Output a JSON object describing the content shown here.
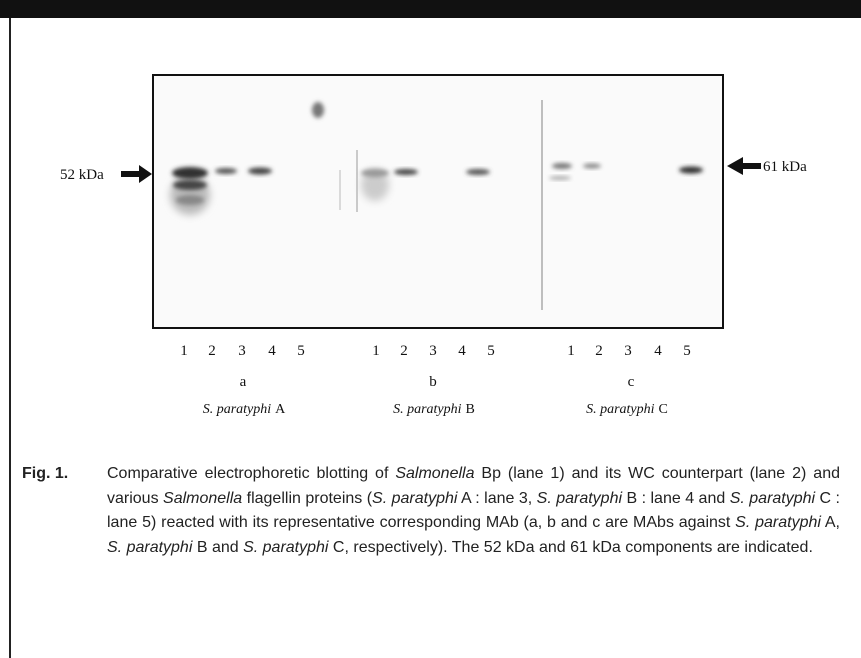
{
  "figure": {
    "markers": [
      {
        "label": "52 kDa"
      },
      {
        "label": "61 kDa"
      }
    ],
    "panels": [
      {
        "lanes": [
          "1",
          "2",
          "3",
          "4",
          "5"
        ],
        "letter": "a",
        "species": "S. paratyphi",
        "serovar": "A"
      },
      {
        "lanes": [
          "1",
          "2",
          "3",
          "4",
          "5"
        ],
        "letter": "b",
        "species": "S. paratyphi",
        "serovar": "B"
      },
      {
        "lanes": [
          "1",
          "2",
          "3",
          "4",
          "5"
        ],
        "letter": "c",
        "species": "S. paratyphi",
        "serovar": "C"
      }
    ],
    "caption": {
      "label": "Fig. 1.",
      "segments": [
        {
          "text": "Comparative electrophoretic blotting of ",
          "italic": false
        },
        {
          "text": "Salmonella",
          "italic": true
        },
        {
          "text": " Bp (lane 1) and its WC counterpart (lane 2) and various ",
          "italic": false
        },
        {
          "text": "Salmonella",
          "italic": true
        },
        {
          "text": " flagellin proteins (",
          "italic": false
        },
        {
          "text": "S. paratyphi",
          "italic": true
        },
        {
          "text": " A : lane 3, ",
          "italic": false
        },
        {
          "text": "S. paratyphi",
          "italic": true
        },
        {
          "text": " B : lane 4 and ",
          "italic": false
        },
        {
          "text": "S. paratyphi",
          "italic": true
        },
        {
          "text": " C : lane 5) reacted with its representative corresponding MAb (a, b and c are MAbs against ",
          "italic": false
        },
        {
          "text": "S. paratyphi",
          "italic": true
        },
        {
          "text": " A, ",
          "italic": false
        },
        {
          "text": "S. paratyphi",
          "italic": true
        },
        {
          "text": " B and ",
          "italic": false
        },
        {
          "text": "S. paratyphi",
          "italic": true
        },
        {
          "text": " C, respectively). The 52 kDa and 61 kDa components are indicated.",
          "italic": false
        }
      ]
    }
  }
}
